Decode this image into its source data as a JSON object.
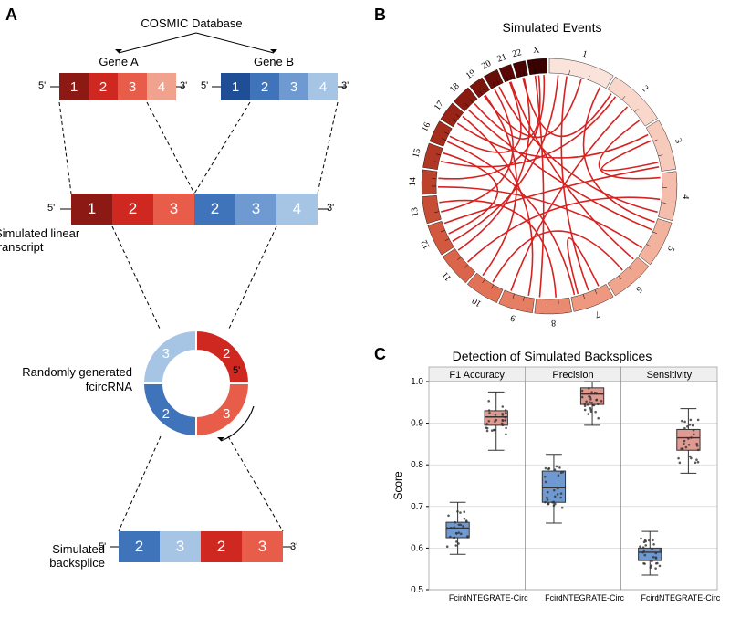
{
  "labels": {
    "A": "A",
    "B": "B",
    "C": "C",
    "cosmic": "COSMIC Database",
    "geneA": "Gene A",
    "geneB": "Gene B",
    "simlin": "Simulated linear transcript",
    "fcirc1": "Randomly generated",
    "fcirc2": "fcircRNA",
    "simback": "Simulated backsplice",
    "primes": {
      "f": "5'",
      "r": "3'"
    },
    "circos_title": "Simulated Events",
    "box_title": "Detection of Simulated Backsplices",
    "box_y": "Score",
    "box_methods": [
      "Fcirc",
      "INTEGRATE-Circ"
    ],
    "box_facets": [
      "F1 Accuracy",
      "Precision",
      "Sensitivity"
    ]
  },
  "palette": {
    "redsA": [
      "#8c1913",
      "#cf2821",
      "#e85d4a",
      "#f0a28f"
    ],
    "bluesB": [
      "#1f4e96",
      "#3f74bb",
      "#6f9ad1",
      "#a6c4e3"
    ],
    "circos_ring": [
      "#fae3da",
      "#f9d7cb",
      "#f7cbbc",
      "#f5beac",
      "#f3b29d",
      "#f0a58e",
      "#ee987f",
      "#ea8b71",
      "#e67e63",
      "#e17256",
      "#da654a",
      "#d2593f",
      "#c84d35",
      "#bd422c",
      "#b13724",
      "#a42d1d",
      "#972416",
      "#891b11",
      "#7a140c",
      "#6a0d08",
      "#5a0805",
      "#4a0403",
      "#3a0101"
    ],
    "circos_arc": "#d62221",
    "box_colors": {
      "Fcirc": "#6f9ad1",
      "INTEGRATE-Circ": "#e09a91"
    },
    "box_border": "#333333",
    "grid": "#cfcfcf",
    "panel_border": "#888888",
    "facet_bg": "#efefef"
  },
  "panelA": {
    "geneA_exons": [
      "1",
      "2",
      "3",
      "4"
    ],
    "geneB_exons": [
      "1",
      "2",
      "3",
      "4"
    ],
    "fusion_exons": [
      {
        "n": "1",
        "c": "#8c1913"
      },
      {
        "n": "2",
        "c": "#cf2821"
      },
      {
        "n": "3",
        "c": "#e85d4a"
      },
      {
        "n": "2",
        "c": "#3f74bb"
      },
      {
        "n": "3",
        "c": "#6f9ad1"
      },
      {
        "n": "4",
        "c": "#a6c4e3"
      }
    ],
    "circ_quarters": [
      {
        "n": "2",
        "c": "#cf2821"
      },
      {
        "n": "3",
        "c": "#e85d4a"
      },
      {
        "n": "2",
        "c": "#3f74bb"
      },
      {
        "n": "3",
        "c": "#a6c4e3"
      }
    ],
    "backsplice_exons": [
      {
        "n": "2",
        "c": "#3f74bb"
      },
      {
        "n": "3",
        "c": "#a6c4e3"
      },
      {
        "n": "2",
        "c": "#cf2821"
      },
      {
        "n": "3",
        "c": "#e85d4a"
      }
    ]
  },
  "circos": {
    "chrom_labels": [
      "1",
      "2",
      "3",
      "4",
      "5",
      "6",
      "7",
      "8",
      "9",
      "10",
      "11",
      "12",
      "13",
      "14",
      "15",
      "16",
      "17",
      "18",
      "19",
      "20",
      "21",
      "22",
      "X"
    ],
    "chrom_spans_deg": [
      27,
      24,
      21,
      20,
      19,
      18,
      17,
      15,
      14,
      14,
      14,
      13,
      11,
      10,
      10,
      9,
      8,
      8,
      6,
      6,
      5,
      5,
      8
    ],
    "ring_outer": 140,
    "ring_inner": 124,
    "gap_deg": 0.9,
    "edges": [
      [
        0,
        0.9,
        4,
        0.1
      ],
      [
        0,
        0.3,
        6,
        0.5
      ],
      [
        0,
        0.15,
        11,
        0.2
      ],
      [
        0,
        0.55,
        18,
        0.4
      ],
      [
        1,
        0.2,
        14,
        0.4
      ],
      [
        1,
        0.85,
        3,
        0.1
      ],
      [
        1,
        0.5,
        8,
        0.8
      ],
      [
        1,
        0.1,
        21,
        0.5
      ],
      [
        2,
        0.3,
        2,
        0.8
      ],
      [
        2,
        0.9,
        11,
        0.9
      ],
      [
        2,
        0.15,
        16,
        0.3
      ],
      [
        3,
        0.6,
        10,
        0.4
      ],
      [
        3,
        0.9,
        19,
        0.6
      ],
      [
        4,
        0.8,
        13,
        0.3
      ],
      [
        4,
        0.3,
        17,
        0.2
      ],
      [
        5,
        0.5,
        9,
        0.4
      ],
      [
        5,
        0.1,
        20,
        0.5
      ],
      [
        6,
        0.8,
        6,
        0.2
      ],
      [
        6,
        0.9,
        15,
        0.3
      ],
      [
        7,
        0.4,
        12,
        0.7
      ],
      [
        7,
        0.9,
        22,
        0.3
      ],
      [
        8,
        0.2,
        16,
        0.8
      ],
      [
        9,
        0.8,
        18,
        0.5
      ],
      [
        10,
        0.9,
        21,
        0.6
      ],
      [
        11,
        0.5,
        14,
        0.8
      ],
      [
        12,
        0.3,
        19,
        0.2
      ],
      [
        13,
        0.7,
        22,
        0.8
      ],
      [
        15,
        0.6,
        20,
        0.4
      ],
      [
        17,
        0.7,
        22,
        0.5
      ]
    ]
  },
  "boxplots": {
    "ylim": [
      0.5,
      1.0
    ],
    "yticks": [
      0.5,
      0.6,
      0.7,
      0.8,
      0.9,
      1.0
    ],
    "n_points": 28,
    "panels": {
      "F1 Accuracy": {
        "Fcirc": {
          "min": 0.585,
          "q1": 0.625,
          "med": 0.648,
          "q3": 0.662,
          "max": 0.71
        },
        "INTEGRATE-Circ": {
          "min": 0.835,
          "q1": 0.895,
          "med": 0.915,
          "q3": 0.93,
          "max": 0.975
        }
      },
      "Precision": {
        "Fcirc": {
          "min": 0.66,
          "q1": 0.71,
          "med": 0.745,
          "q3": 0.785,
          "max": 0.825
        },
        "INTEGRATE-Circ": {
          "min": 0.895,
          "q1": 0.945,
          "med": 0.97,
          "q3": 0.985,
          "max": 1.0
        }
      },
      "Sensitivity": {
        "Fcirc": {
          "min": 0.535,
          "q1": 0.57,
          "med": 0.59,
          "q3": 0.6,
          "max": 0.64
        },
        "INTEGRATE-Circ": {
          "min": 0.78,
          "q1": 0.835,
          "med": 0.865,
          "q3": 0.885,
          "max": 0.935
        }
      }
    }
  }
}
